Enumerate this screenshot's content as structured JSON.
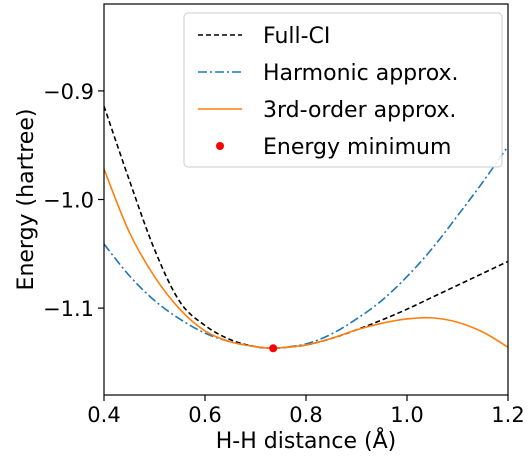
{
  "chart_data": {
    "type": "line",
    "xlabel": "H-H distance (Å)",
    "ylabel": "Energy (hartree)",
    "xlim": [
      0.4,
      1.2
    ],
    "ylim": [
      -1.18,
      -0.82
    ],
    "x_ticks": [
      0.4,
      0.6,
      0.8,
      1.0,
      1.2
    ],
    "x_tick_labels": [
      "0.4",
      "0.6",
      "0.8",
      "1.0",
      "1.2"
    ],
    "y_ticks": [
      -0.9,
      -1.0,
      -1.1
    ],
    "y_tick_labels": [
      "−0.9",
      "−1.0",
      "−1.1"
    ],
    "grid": false,
    "legend_position": "top-right",
    "series": [
      {
        "name": "Full-CI",
        "style": "dashed",
        "color": "#000000",
        "x": [
          0.4,
          0.45,
          0.5,
          0.55,
          0.6,
          0.65,
          0.7,
          0.735,
          0.75,
          0.8,
          0.85,
          0.9,
          0.95,
          1.0,
          1.05,
          1.1,
          1.15,
          1.2
        ],
        "y": [
          -0.914,
          -0.982,
          -1.046,
          -1.094,
          -1.116,
          -1.129,
          -1.1355,
          -1.137,
          -1.1365,
          -1.134,
          -1.128,
          -1.12,
          -1.111,
          -1.101,
          -1.09,
          -1.079,
          -1.068,
          -1.057
        ]
      },
      {
        "name": "Harmonic approx.",
        "style": "dashdot",
        "color": "#1f77b4",
        "x": [
          0.4,
          0.45,
          0.5,
          0.55,
          0.6,
          0.65,
          0.7,
          0.735,
          0.75,
          0.8,
          0.85,
          0.9,
          0.95,
          1.0,
          1.05,
          1.1,
          1.15,
          1.2
        ],
        "y": [
          -1.041,
          -1.07,
          -1.093,
          -1.11,
          -1.123,
          -1.131,
          -1.1355,
          -1.137,
          -1.1365,
          -1.133,
          -1.124,
          -1.11,
          -1.093,
          -1.071,
          -1.045,
          -1.015,
          -0.984,
          -0.951
        ]
      },
      {
        "name": "3rd-order approx.",
        "style": "solid",
        "color": "#ff7f0e",
        "x": [
          0.4,
          0.45,
          0.5,
          0.55,
          0.6,
          0.65,
          0.7,
          0.735,
          0.75,
          0.8,
          0.85,
          0.9,
          0.95,
          1.0,
          1.05,
          1.1,
          1.15,
          1.2
        ],
        "y": [
          -0.972,
          -1.03,
          -1.071,
          -1.101,
          -1.121,
          -1.131,
          -1.1355,
          -1.137,
          -1.1365,
          -1.134,
          -1.128,
          -1.12,
          -1.114,
          -1.11,
          -1.109,
          -1.113,
          -1.122,
          -1.136
        ]
      },
      {
        "name": "Energy minimum",
        "style": "marker",
        "color": "#ff0000",
        "x": [
          0.735
        ],
        "y": [
          -1.137
        ]
      }
    ]
  }
}
